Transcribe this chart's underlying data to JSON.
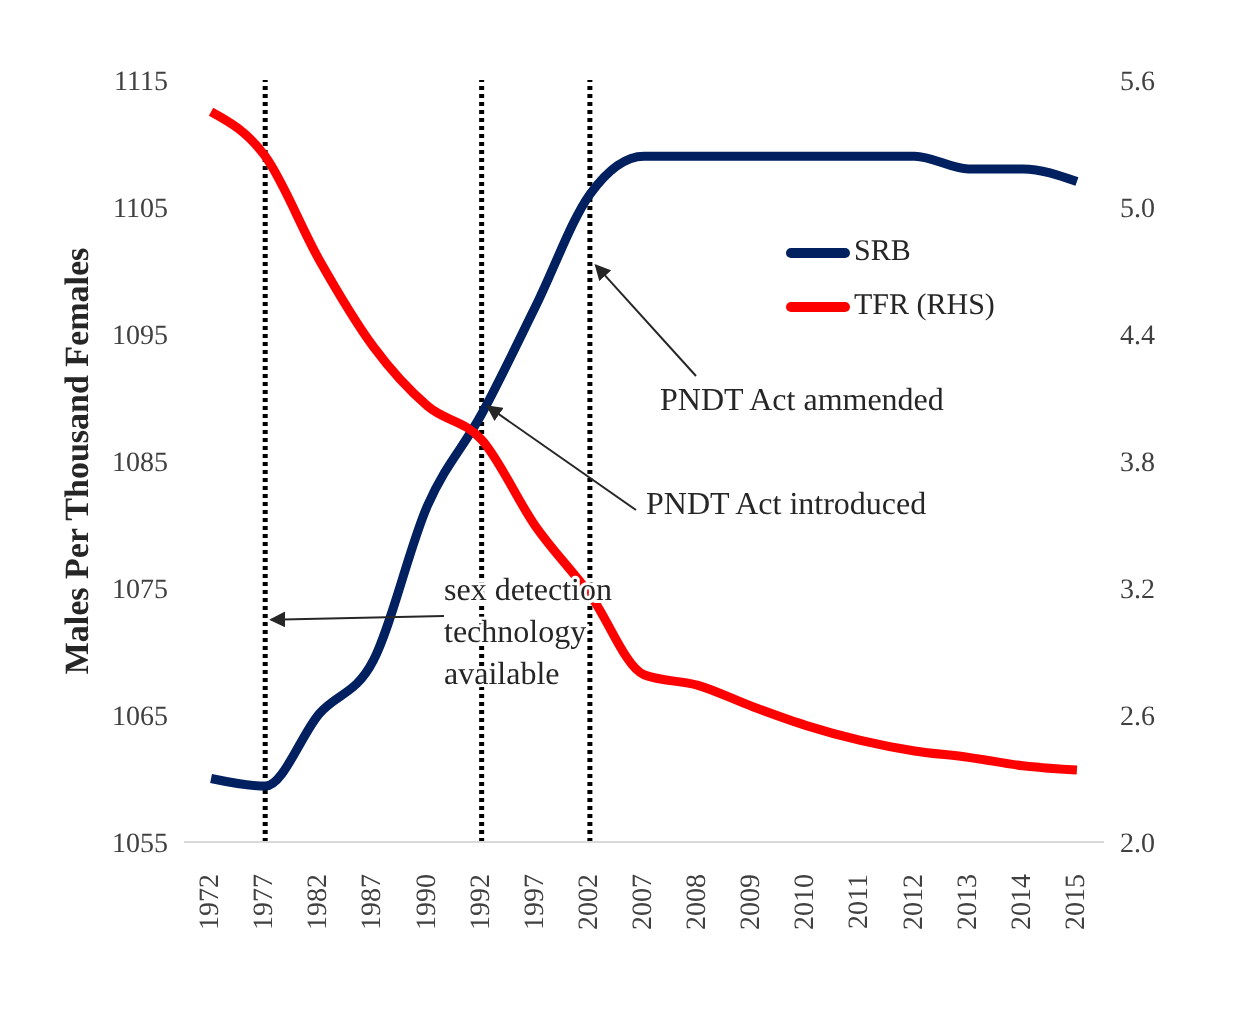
{
  "chart_data": {
    "type": "line",
    "ylabel": "Males Per Thousand Females",
    "categories": [
      "1972",
      "1977",
      "1982",
      "1987",
      "1990",
      "1992",
      "1997",
      "2002",
      "2007",
      "2008",
      "2009",
      "2010",
      "2011",
      "2012",
      "2013",
      "2014",
      "2015"
    ],
    "series": [
      {
        "name": "SRB",
        "color": "#002060",
        "values": [
          1060,
          1059.4,
          1065.1,
          1069.3,
          1081.5,
          1088.7,
          1097.2,
          1106,
          1109,
          1109,
          1109,
          1109,
          1109,
          1109,
          1108,
          1108,
          1107
        ]
      },
      {
        "name": "TFR (RHS)",
        "color": "#ff0000",
        "axis": "y2",
        "values": [
          5.45,
          5.24,
          4.75,
          4.34,
          4.06,
          3.9,
          3.49,
          3.17,
          2.79,
          2.74,
          2.64,
          2.55,
          2.48,
          2.43,
          2.4,
          2.36,
          2.34
        ]
      }
    ],
    "ylim": [
      1055,
      1115
    ],
    "yticks": [
      1055,
      1065,
      1075,
      1085,
      1095,
      1105,
      1115
    ],
    "y2lim": [
      2.0,
      5.6
    ],
    "y2ticks": [
      {
        "value": 2.0,
        "label": "2.0"
      },
      {
        "value": 2.6,
        "label": "2.6"
      },
      {
        "value": 3.2,
        "label": "3.2"
      },
      {
        "value": 3.8,
        "label": "3.8"
      },
      {
        "value": 4.4,
        "label": "4.4"
      },
      {
        "value": 5.0,
        "label": "5.0"
      },
      {
        "value": 5.6,
        "label": "5.6"
      }
    ],
    "ref_lines": [
      {
        "axis": "x",
        "value": "1977",
        "color": "#000000",
        "line_style": "dotted"
      },
      {
        "axis": "x",
        "value": "1992",
        "color": "#000000",
        "line_style": "dotted"
      },
      {
        "axis": "x",
        "value": "2002",
        "color": "#000000",
        "line_style": "dotted"
      }
    ],
    "annotations": [
      {
        "text": "sex detection technology available",
        "x": "1977",
        "y": 1072.5
      },
      {
        "text": "PNDT Act introduced",
        "x": "1992",
        "y": 1089.3
      },
      {
        "text": "PNDT Act ammended",
        "x": "2002",
        "y": 1100.4
      }
    ],
    "legend": "top right",
    "marker": "none",
    "line_style": "solid"
  }
}
